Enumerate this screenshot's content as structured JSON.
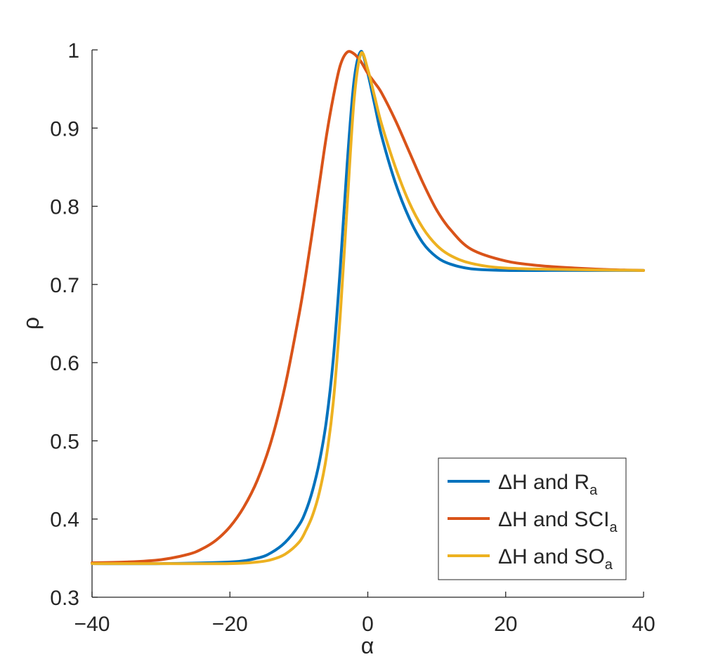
{
  "chart_data": {
    "type": "line",
    "title": "",
    "xlabel": "α",
    "ylabel": "ρ",
    "xlim": [
      -40,
      40
    ],
    "ylim": [
      0.3,
      1
    ],
    "xticks": [
      -40,
      -20,
      0,
      20,
      40
    ],
    "xtick_labels": [
      "−40",
      "−20",
      "0",
      "20",
      "40"
    ],
    "yticks": [
      0.3,
      0.4,
      0.5,
      0.6,
      0.7,
      0.8,
      0.9,
      1
    ],
    "ytick_labels": [
      "0.3",
      "0.4",
      "0.5",
      "0.6",
      "0.7",
      "0.8",
      "0.9",
      "1"
    ],
    "grid": false,
    "legend_position": "bottom-right",
    "series": [
      {
        "name": "ΔH and R",
        "name_main": "ΔH and R",
        "name_sub": "a",
        "color": "#0072BD",
        "x": [
          -40,
          -30,
          -20,
          -16,
          -14,
          -12,
          -10,
          -9,
          -8,
          -7,
          -6,
          -5,
          -4,
          -3,
          -2,
          -1,
          0,
          1,
          2,
          4,
          6,
          8,
          10,
          12,
          15,
          20,
          30,
          40
        ],
        "y": [
          0.343,
          0.343,
          0.345,
          0.35,
          0.357,
          0.37,
          0.392,
          0.41,
          0.437,
          0.474,
          0.526,
          0.605,
          0.72,
          0.853,
          0.96,
          0.998,
          0.97,
          0.93,
          0.89,
          0.83,
          0.785,
          0.753,
          0.735,
          0.726,
          0.72,
          0.718,
          0.718,
          0.718
        ]
      },
      {
        "name": "ΔH and SCI",
        "name_main": "ΔH and SCI",
        "name_sub": "a",
        "color": "#D95319",
        "x": [
          -40,
          -35,
          -30,
          -26,
          -24,
          -22,
          -20,
          -18,
          -16,
          -14,
          -12,
          -10,
          -9,
          -8,
          -7,
          -6,
          -5,
          -4,
          -3,
          -2,
          -1,
          0,
          1,
          2,
          4,
          6,
          8,
          10,
          12,
          15,
          20,
          25,
          30,
          35,
          40
        ],
        "y": [
          0.344,
          0.345,
          0.348,
          0.355,
          0.362,
          0.373,
          0.39,
          0.415,
          0.45,
          0.5,
          0.57,
          0.66,
          0.712,
          0.77,
          0.83,
          0.89,
          0.94,
          0.98,
          0.997,
          0.995,
          0.985,
          0.97,
          0.958,
          0.945,
          0.91,
          0.87,
          0.83,
          0.795,
          0.77,
          0.745,
          0.73,
          0.724,
          0.721,
          0.719,
          0.718
        ]
      },
      {
        "name": "ΔH and SO",
        "name_main": "ΔH and SO",
        "name_sub": "a",
        "color": "#EDB120",
        "x": [
          -40,
          -30,
          -20,
          -16,
          -14,
          -12,
          -10,
          -9,
          -8,
          -7,
          -6,
          -5,
          -4,
          -3,
          -2,
          -1,
          0,
          1,
          2,
          4,
          6,
          8,
          10,
          12,
          15,
          20,
          30,
          40
        ],
        "y": [
          0.343,
          0.343,
          0.343,
          0.345,
          0.348,
          0.355,
          0.37,
          0.385,
          0.405,
          0.435,
          0.48,
          0.55,
          0.66,
          0.8,
          0.935,
          0.995,
          0.975,
          0.94,
          0.905,
          0.85,
          0.805,
          0.772,
          0.75,
          0.737,
          0.727,
          0.721,
          0.719,
          0.718
        ]
      }
    ]
  }
}
